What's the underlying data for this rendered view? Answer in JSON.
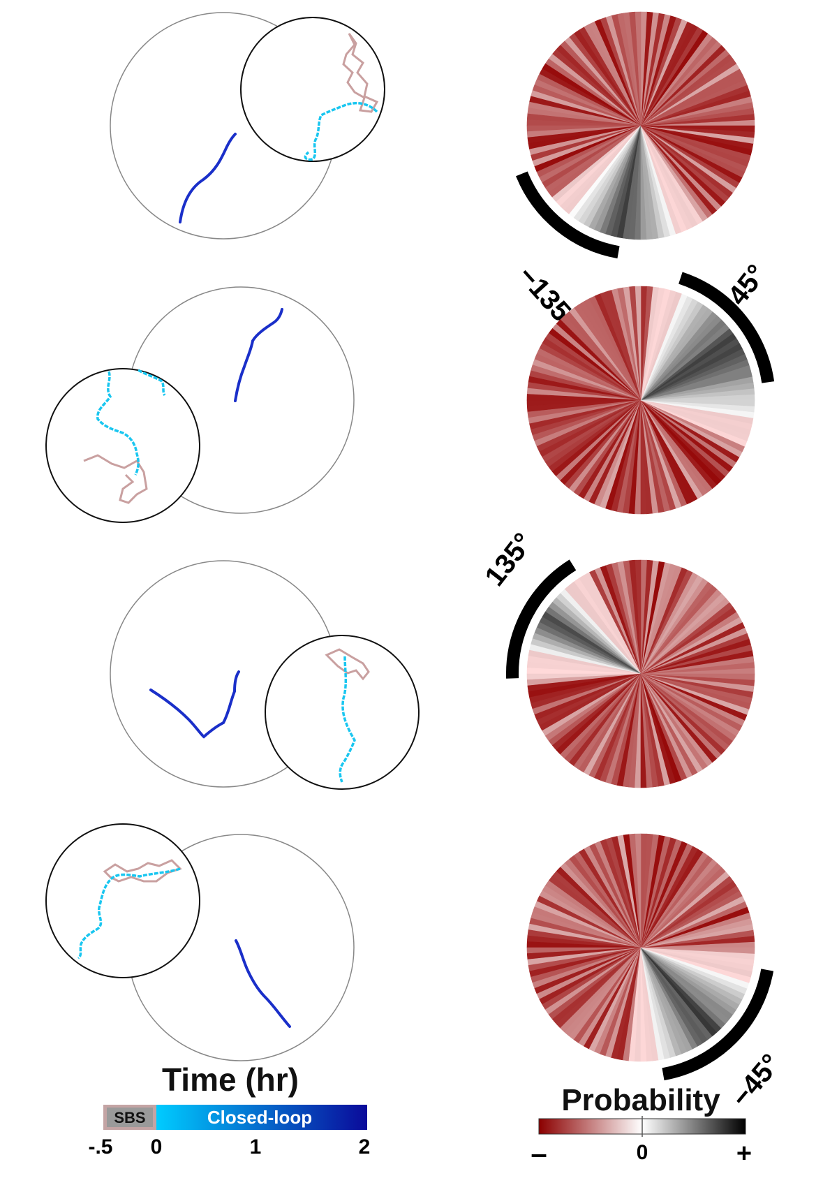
{
  "panels": [
    {
      "arc_label": "−135°"
    },
    {
      "arc_label": "45°"
    },
    {
      "arc_label": "135°"
    },
    {
      "arc_label": "−45°"
    }
  ],
  "time_legend": {
    "title": "Time (hr)",
    "sbs_label": "SBS",
    "closed_loop_label": "Closed-loop",
    "ticks": [
      "-.5",
      "0",
      "1",
      "2"
    ],
    "colors": {
      "sbs": "#c4a4a4",
      "start": "#00ccff",
      "end": "#0a0a9a"
    }
  },
  "probability_legend": {
    "title": "Probability",
    "ticks": [
      "–",
      "0",
      "+"
    ],
    "colors": {
      "neg": "#8b0000",
      "mid": "#ffffff",
      "pos": "#000000"
    }
  }
}
